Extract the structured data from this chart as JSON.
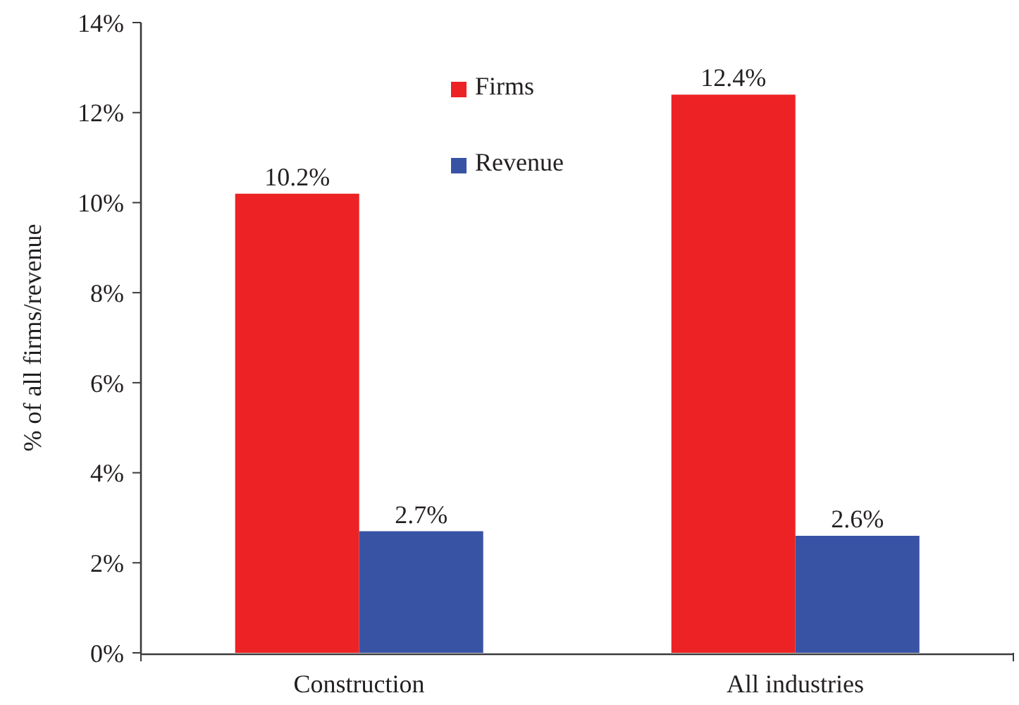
{
  "chart_data": {
    "type": "bar",
    "ylabel": "% of all firms/revenue",
    "categories": [
      "Construction",
      "All industries"
    ],
    "series": [
      {
        "name": "Firms",
        "color": "#ed2224",
        "values": [
          10.2,
          12.4
        ],
        "value_labels": [
          "10.2%",
          "12.4%"
        ]
      },
      {
        "name": "Revenue",
        "color": "#3953a4",
        "values": [
          2.7,
          2.6
        ],
        "value_labels": [
          "2.7%",
          "2.6%"
        ]
      }
    ],
    "ylim": [
      0,
      14
    ],
    "yticks": [
      {
        "value": 0,
        "label": "0%"
      },
      {
        "value": 2,
        "label": "2%"
      },
      {
        "value": 4,
        "label": "4%"
      },
      {
        "value": 6,
        "label": "6%"
      },
      {
        "value": 8,
        "label": "8%"
      },
      {
        "value": 10,
        "label": "10%"
      },
      {
        "value": 12,
        "label": "12%"
      },
      {
        "value": 14,
        "label": "14%"
      }
    ],
    "legend": "top"
  }
}
